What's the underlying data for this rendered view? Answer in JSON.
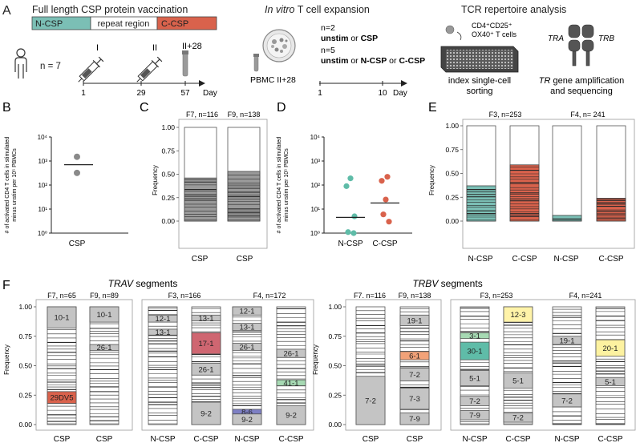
{
  "panel_labels": {
    "a": "A",
    "b": "B",
    "c": "C",
    "d": "D",
    "e": "E",
    "f": "F"
  },
  "colors": {
    "teal": "#7bbfb5",
    "tealDark": "#2f8a82",
    "orange": "#d9624c",
    "gray": "#c4c4c4",
    "grayDark": "#9a9a9a",
    "pink": "#cf6671",
    "orangeLight": "#f2a278",
    "green": "#a6d9b3",
    "purple": "#7d7fc4",
    "yellowPale": "#fff3a8",
    "yellowLight": "#fdf2a0",
    "seafoam": "#5fbca8"
  },
  "panel_a": {
    "vaccination": {
      "title_prefix": "Full length CSP",
      "title_suffix": " protein vaccination",
      "segments": [
        "N-CSP",
        "repeat region",
        "C-CSP"
      ],
      "cohort": "n = 7",
      "doses": [
        "I",
        "II"
      ],
      "last_label": "II+28",
      "ticks": [
        "1",
        "29",
        "57"
      ],
      "axis_unit": "Day"
    },
    "expansion": {
      "title_italic": "In vitro",
      "title_rest": " T cell expansion",
      "pbmc": "PBMC II+28",
      "group1": {
        "n": "n=2",
        "a": "unstim",
        "or": " or ",
        "b": "CSP"
      },
      "group2": {
        "n": "n=5",
        "a": "unstim",
        "or1": " or ",
        "b": "N-CSP",
        "or2": " or ",
        "c": "C-CSP"
      },
      "ticks": [
        "1",
        "10"
      ],
      "axis_unit": "Day"
    },
    "tcr": {
      "title": "TCR repertoire analysis",
      "cells_line1": "CD4⁺CD25⁺",
      "cells_line2": "OX40⁺ T cells",
      "sort_line1": "index single-cell",
      "sort_line2": "sorting",
      "tra": "TRA",
      "trb": "TRB",
      "gene_line1_italic": "TR",
      "gene_line1_rest": " gene amplification",
      "gene_line2": "and sequencing"
    }
  },
  "chart_data": [
    {
      "id": "B",
      "type": "scatter",
      "ylabel_line1": "# of activated CD4 T cells in stimulated",
      "ylabel_line2": "minus unstim per 10⁵ PBMCs",
      "y_scale": "log10",
      "y_ticks": [
        "10⁰",
        "10¹",
        "10²",
        "10³",
        "10⁴"
      ],
      "categories": [
        "CSP"
      ],
      "points": [
        {
          "cat": "CSP",
          "y": 1500
        },
        {
          "cat": "CSP",
          "y": 320
        }
      ],
      "median": [
        {
          "cat": "CSP",
          "y": 700
        }
      ]
    },
    {
      "id": "C",
      "type": "bar",
      "stacked": true,
      "ylabel": "Frequency",
      "y_ticks": [
        "0.00",
        "0.25",
        "0.50",
        "0.75",
        "1.00"
      ],
      "bars": [
        {
          "label": "CSP",
          "title": "F7, n=116",
          "filled": 0.46
        },
        {
          "label": "CSP",
          "title": "F9, n=138",
          "filled": 0.53
        }
      ]
    },
    {
      "id": "D",
      "type": "scatter",
      "ylabel_line1": "# of activated CD4 T cells in stimulated",
      "ylabel_line2": "minus unstim per 10⁵ PBMCs",
      "y_scale": "log10",
      "y_ticks": [
        "10⁰",
        "10¹",
        "10²",
        "10³",
        "10⁴"
      ],
      "categories": [
        "N-CSP",
        "C-CSP"
      ],
      "points": [
        {
          "cat": "N-CSP",
          "y": 190
        },
        {
          "cat": "N-CSP",
          "y": 90
        },
        {
          "cat": "N-CSP",
          "y": 5
        },
        {
          "cat": "N-CSP",
          "y": 1.1
        },
        {
          "cat": "N-CSP",
          "y": 1.0
        },
        {
          "cat": "C-CSP",
          "y": 220
        },
        {
          "cat": "C-CSP",
          "y": 150
        },
        {
          "cat": "C-CSP",
          "y": 25
        },
        {
          "cat": "C-CSP",
          "y": 6
        },
        {
          "cat": "C-CSP",
          "y": 3
        }
      ],
      "median": [
        {
          "cat": "N-CSP",
          "y": 4.5
        },
        {
          "cat": "C-CSP",
          "y": 18
        }
      ]
    },
    {
      "id": "E",
      "type": "bar",
      "stacked": true,
      "ylabel": "Frequency",
      "y_ticks": [
        "0.00",
        "0.25",
        "0.50",
        "0.75",
        "1.00"
      ],
      "group_titles": [
        "F3, n=253",
        "F4, n= 241"
      ],
      "bars": [
        {
          "label": "N-CSP",
          "filled": 0.37,
          "color": "teal"
        },
        {
          "label": "C-CSP",
          "filled": 0.59,
          "color": "orange"
        },
        {
          "label": "N-CSP",
          "filled": 0.06,
          "color": "teal"
        },
        {
          "label": "C-CSP",
          "filled": 0.24,
          "color": "orange"
        }
      ]
    },
    {
      "id": "F",
      "type": "bar",
      "stacked": true,
      "ylabel": "Frequency",
      "y_ticks": [
        "0.00",
        "0.25",
        "0.50",
        "0.75",
        "1.00"
      ],
      "section_titles": {
        "trav": "TRAV",
        "trbv": "TRBV",
        "suffix": " segments"
      },
      "groups": {
        "trav_csp": {
          "titles": [
            "F7, n=65",
            "F9, n=89"
          ],
          "labels": [
            "CSP",
            "CSP"
          ]
        },
        "trav_ncc": {
          "titles": [
            "F3, n=166",
            "F4, n=172"
          ],
          "labels": [
            "N-CSP",
            "C-CSP",
            "N-CSP",
            "C-CSP"
          ]
        },
        "trbv_csp": {
          "titles": [
            "F7. n=116",
            "F9, n=138"
          ],
          "labels": [
            "CSP",
            "CSP"
          ]
        },
        "trbv_ncc": {
          "titles": [
            "F3, n=253",
            "F4, n=241"
          ],
          "labels": [
            "N-CSP",
            "C-CSP",
            "N-CSP",
            "C-CSP"
          ]
        }
      },
      "segments": [
        {
          "col": 0,
          "label": "10-1",
          "from": 0.82,
          "to": 1.0,
          "color": "gray"
        },
        {
          "col": 0,
          "label": "29DV5",
          "from": 0.18,
          "to": 0.28,
          "color": "orange"
        },
        {
          "col": 1,
          "label": "10-1",
          "from": 0.87,
          "to": 1.0,
          "color": "gray"
        },
        {
          "col": 1,
          "label": "26-1",
          "from": 0.63,
          "to": 0.68,
          "color": "gray"
        },
        {
          "col": 2,
          "label": "12-1",
          "from": 0.87,
          "to": 0.93,
          "color": "gray"
        },
        {
          "col": 2,
          "label": "13-1",
          "from": 0.76,
          "to": 0.81,
          "color": "gray"
        },
        {
          "col": 3,
          "label": "13-1",
          "from": 0.88,
          "to": 0.93,
          "color": "gray"
        },
        {
          "col": 3,
          "label": "17-1",
          "from": 0.6,
          "to": 0.78,
          "color": "pink"
        },
        {
          "col": 3,
          "label": "26-1",
          "from": 0.42,
          "to": 0.52,
          "color": "gray"
        },
        {
          "col": 3,
          "label": "9-2",
          "from": 0.0,
          "to": 0.19,
          "color": "gray"
        },
        {
          "col": 4,
          "label": "12-1",
          "from": 0.93,
          "to": 1.0,
          "color": "gray"
        },
        {
          "col": 4,
          "label": "13-1",
          "from": 0.8,
          "to": 0.86,
          "color": "gray"
        },
        {
          "col": 4,
          "label": "26-1",
          "from": 0.63,
          "to": 0.69,
          "color": "gray"
        },
        {
          "col": 4,
          "label": "8-6",
          "from": 0.09,
          "to": 0.13,
          "color": "purple"
        },
        {
          "col": 4,
          "label": "9-2",
          "from": 0.0,
          "to": 0.09,
          "color": "gray"
        },
        {
          "col": 5,
          "label": "26-1",
          "from": 0.57,
          "to": 0.64,
          "color": "gray"
        },
        {
          "col": 5,
          "label": "41-1",
          "from": 0.33,
          "to": 0.38,
          "color": "green"
        },
        {
          "col": 5,
          "label": "9-2",
          "from": 0.0,
          "to": 0.16,
          "color": "gray"
        },
        {
          "col": 6,
          "label": "7-2",
          "from": 0.0,
          "to": 0.41,
          "color": "gray"
        },
        {
          "col": 7,
          "label": "19-1",
          "from": 0.84,
          "to": 0.93,
          "color": "gray"
        },
        {
          "col": 7,
          "label": "6-1",
          "from": 0.55,
          "to": 0.62,
          "color": "orangeLight"
        },
        {
          "col": 7,
          "label": "7-2",
          "from": 0.37,
          "to": 0.48,
          "color": "gray"
        },
        {
          "col": 7,
          "label": "7-3",
          "from": 0.13,
          "to": 0.31,
          "color": "gray"
        },
        {
          "col": 7,
          "label": "7-9",
          "from": 0.0,
          "to": 0.1,
          "color": "gray"
        },
        {
          "col": 8,
          "label": "3-1",
          "from": 0.73,
          "to": 0.78,
          "color": "green"
        },
        {
          "col": 8,
          "label": "30-1",
          "from": 0.55,
          "to": 0.7,
          "color": "seafoam"
        },
        {
          "col": 8,
          "label": "5-1",
          "from": 0.33,
          "to": 0.46,
          "color": "gray"
        },
        {
          "col": 8,
          "label": "7-2",
          "from": 0.16,
          "to": 0.24,
          "color": "gray"
        },
        {
          "col": 8,
          "label": "7-9",
          "from": 0.04,
          "to": 0.12,
          "color": "gray"
        },
        {
          "col": 9,
          "label": "12-3",
          "from": 0.87,
          "to": 1.0,
          "color": "yellowPale"
        },
        {
          "col": 9,
          "label": "5-1",
          "from": 0.31,
          "to": 0.44,
          "color": "gray"
        },
        {
          "col": 9,
          "label": "7-2",
          "from": 0.02,
          "to": 0.1,
          "color": "gray"
        },
        {
          "col": 10,
          "label": "19-1",
          "from": 0.68,
          "to": 0.75,
          "color": "gray"
        },
        {
          "col": 10,
          "label": "7-2",
          "from": 0.15,
          "to": 0.26,
          "color": "gray"
        },
        {
          "col": 11,
          "label": "20-1",
          "from": 0.58,
          "to": 0.72,
          "color": "yellowLight"
        },
        {
          "col": 11,
          "label": "5-1",
          "from": 0.33,
          "to": 0.4,
          "color": "gray"
        }
      ]
    }
  ]
}
